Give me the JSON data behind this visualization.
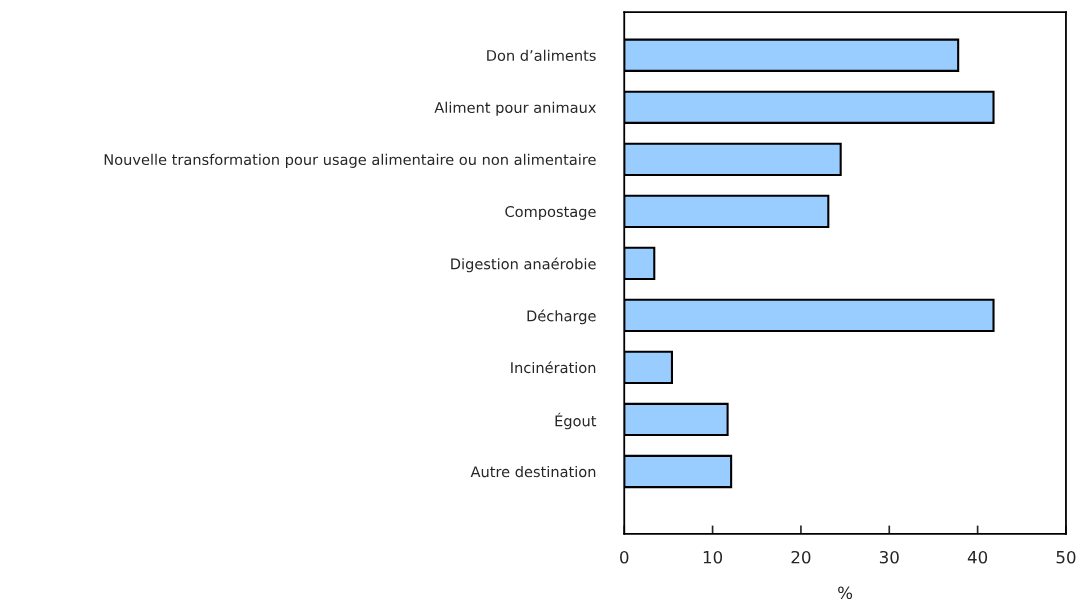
{
  "chart_data": {
    "type": "bar",
    "orientation": "horizontal",
    "xlabel": "%",
    "categories": [
      "Don d’aliments",
      "Aliment pour animaux",
      "Nouvelle transformation pour usage alimentaire ou non alimentaire",
      "Compostage",
      "Digestion anaérobie",
      "Décharge",
      "Incinération",
      "Égout",
      "Autre destination"
    ],
    "values": [
      37.8,
      41.8,
      24.5,
      23.1,
      3.4,
      41.8,
      5.4,
      11.7,
      12.1
    ],
    "color": "#99ccff",
    "xlim": [
      0,
      50
    ],
    "xticks": [
      0,
      10,
      20,
      30,
      40,
      50
    ],
    "grid": false,
    "legend": false
  }
}
